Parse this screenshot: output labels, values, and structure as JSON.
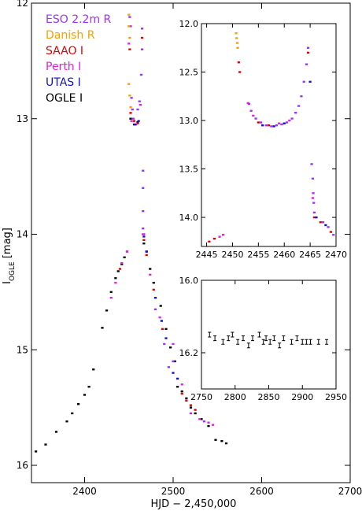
{
  "chart_data": [
    {
      "type": "scatter",
      "xlabel": "HJD − 2,450,000",
      "ylabel": "I",
      "ylabel_sub": "OGLE",
      "ylabel_unit": " [mag]",
      "xlim": [
        2340,
        2700
      ],
      "ylim": [
        16.15,
        12.0
      ],
      "xticks": [
        2400,
        2500,
        2600,
        2700
      ],
      "yticks": [
        12,
        13,
        14,
        15,
        16
      ],
      "legend": {
        "placement": "top-left",
        "entries": [
          {
            "name": "ESO 2.2m R",
            "color": "#9b30ff"
          },
          {
            "name": "Danish R",
            "color": "#f5a000"
          },
          {
            "name": "SAAO I",
            "color": "#e00000"
          },
          {
            "name": "Perth I",
            "color": "#e020e0"
          },
          {
            "name": "UTAS I",
            "color": "#1010d0"
          },
          {
            "name": "OGLE I",
            "color": "#000000"
          }
        ]
      },
      "series": [
        {
          "name": "OGLE I",
          "color": "#000000",
          "points": [
            [
              2345,
              15.88
            ],
            [
              2356,
              15.82
            ],
            [
              2368,
              15.71
            ],
            [
              2380,
              15.62
            ],
            [
              2386,
              15.55
            ],
            [
              2393,
              15.47
            ],
            [
              2400,
              15.39
            ],
            [
              2405,
              15.32
            ],
            [
              2410,
              15.17
            ],
            [
              2420,
              14.81
            ],
            [
              2425,
              14.66
            ],
            [
              2430,
              14.5
            ],
            [
              2435,
              14.38
            ],
            [
              2438,
              14.32
            ],
            [
              2442,
              14.26
            ],
            [
              2445,
              14.2
            ],
            [
              2448,
              14.15
            ],
            [
              2452,
              13.0
            ],
            [
              2456,
              13.05
            ],
            [
              2460,
              13.03
            ],
            [
              2467,
              14.08
            ],
            [
              2470,
              14.15
            ],
            [
              2474,
              14.3
            ],
            [
              2478,
              14.42
            ],
            [
              2486,
              14.62
            ],
            [
              2492,
              14.82
            ],
            [
              2497,
              14.98
            ],
            [
              2502,
              15.1
            ],
            [
              2505,
              15.32
            ],
            [
              2510,
              15.36
            ],
            [
              2515,
              15.42
            ],
            [
              2520,
              15.5
            ],
            [
              2525,
              15.55
            ],
            [
              2532,
              15.6
            ],
            [
              2540,
              15.66
            ],
            [
              2548,
              15.78
            ],
            [
              2555,
              15.79
            ],
            [
              2560,
              15.81
            ]
          ]
        },
        {
          "name": "ESO 2.2m R",
          "color": "#9b30ff",
          "points": [
            [
              2451,
              12.12
            ],
            [
              2452,
              12.2
            ],
            [
              2453,
              12.82
            ],
            [
              2454,
              12.92
            ],
            [
              2455,
              13.0
            ],
            [
              2460,
              12.92
            ],
            [
              2462,
              12.85
            ],
            [
              2464,
              12.62
            ],
            [
              2465,
              12.22
            ],
            [
              2465,
              12.4
            ],
            [
              2466,
              13.45
            ],
            [
              2466,
              13.6
            ],
            [
              2466,
              13.8
            ],
            [
              2466,
              13.95
            ],
            [
              2467,
              14.0
            ],
            [
              2470,
              14.15
            ],
            [
              2480,
              14.65
            ],
            [
              2490,
              14.95
            ],
            [
              2495,
              15.15
            ],
            [
              2500,
              15.1
            ],
            [
              2520,
              15.55
            ],
            [
              2535,
              15.62
            ]
          ]
        },
        {
          "name": "Danish R",
          "color": "#f5a000",
          "points": [
            [
              2450,
              12.1
            ],
            [
              2450,
              12.2
            ],
            [
              2451,
              12.3
            ],
            [
              2450,
              12.7
            ],
            [
              2451,
              12.8
            ],
            [
              2452,
              12.9
            ]
          ]
        },
        {
          "name": "SAAO I",
          "color": "#e00000",
          "points": [
            [
              2440,
              14.3
            ],
            [
              2451,
              12.4
            ],
            [
              2452,
              12.95
            ],
            [
              2456,
              13.02
            ],
            [
              2460,
              13.04
            ],
            [
              2465,
              12.3
            ],
            [
              2467,
              14.05
            ],
            [
              2470,
              14.18
            ],
            [
              2478,
              14.48
            ],
            [
              2488,
              14.82
            ],
            [
              2510,
              15.38
            ],
            [
              2515,
              15.44
            ],
            [
              2520,
              15.48
            ],
            [
              2525,
              15.52
            ]
          ]
        },
        {
          "name": "Perth I",
          "color": "#e020e0",
          "points": [
            [
              2430,
              14.55
            ],
            [
              2435,
              14.42
            ],
            [
              2442,
              14.25
            ],
            [
              2448,
              14.15
            ],
            [
              2450,
              12.35
            ],
            [
              2453,
              13.02
            ],
            [
              2458,
              13.05
            ],
            [
              2463,
              12.88
            ],
            [
              2466,
              14.0
            ],
            [
              2474,
              14.35
            ],
            [
              2485,
              14.72
            ],
            [
              2500,
              14.95
            ],
            [
              2510,
              15.3
            ],
            [
              2530,
              15.6
            ],
            [
              2540,
              15.63
            ],
            [
              2545,
              15.65
            ]
          ]
        },
        {
          "name": "UTAS I",
          "color": "#1010d0",
          "points": [
            [
              2457,
              13.05
            ],
            [
              2461,
              13.02
            ],
            [
              2467,
              14.02
            ],
            [
              2470,
              14.15
            ],
            [
              2480,
              14.55
            ],
            [
              2487,
              14.75
            ],
            [
              2492,
              14.9
            ],
            [
              2500,
              15.2
            ],
            [
              2505,
              15.25
            ]
          ]
        }
      ]
    },
    {
      "type": "scatter",
      "placement": "top-right inset",
      "xlim": [
        2444,
        2470
      ],
      "ylim": [
        14.3,
        12.0
      ],
      "xticks": [
        2445,
        2450,
        2455,
        2460,
        2465,
        2470
      ],
      "yticks": [
        12.0,
        12.5,
        13.0,
        13.5,
        14.0
      ],
      "series": [
        {
          "name": "Danish R",
          "color": "#f5a000",
          "points": [
            [
              2450.7,
              12.1
            ],
            [
              2450.8,
              12.15
            ],
            [
              2450.9,
              12.2
            ],
            [
              2451.0,
              12.25
            ]
          ]
        },
        {
          "name": "SAAO I",
          "color": "#e00000",
          "points": [
            [
              2445.5,
              14.25
            ],
            [
              2446.5,
              14.22
            ],
            [
              2451.2,
              12.4
            ],
            [
              2451.4,
              12.5
            ],
            [
              2455,
              13.02
            ],
            [
              2457,
              13.05
            ],
            [
              2464.6,
              12.3
            ],
            [
              2465.8,
              14.0
            ],
            [
              2467,
              14.05
            ],
            [
              2469,
              14.15
            ]
          ]
        },
        {
          "name": "Perth I",
          "color": "#e020e0",
          "points": [
            [
              2447.5,
              14.2
            ],
            [
              2448.2,
              14.18
            ],
            [
              2453,
              12.82
            ],
            [
              2454,
              12.95
            ],
            [
              2459,
              13.03
            ],
            [
              2461,
              13.0
            ],
            [
              2465.5,
              13.8
            ]
          ]
        },
        {
          "name": "ESO 2.2m R",
          "color": "#9b30ff",
          "points": [
            [
              2453.2,
              12.83
            ],
            [
              2453.6,
              12.9
            ],
            [
              2454.5,
              12.98
            ],
            [
              2455.5,
              13.02
            ],
            [
              2456.5,
              13.05
            ],
            [
              2457.5,
              13.06
            ],
            [
              2458.5,
              13.05
            ],
            [
              2459.5,
              13.04
            ],
            [
              2460.5,
              13.02
            ],
            [
              2461.5,
              12.98
            ],
            [
              2462.2,
              12.92
            ],
            [
              2462.8,
              12.85
            ],
            [
              2463.3,
              12.75
            ],
            [
              2463.8,
              12.6
            ],
            [
              2464.3,
              12.42
            ],
            [
              2464.6,
              12.25
            ],
            [
              2465.3,
              13.45
            ],
            [
              2465.5,
              13.6
            ],
            [
              2465.6,
              13.75
            ],
            [
              2465.7,
              13.85
            ],
            [
              2465.8,
              13.95
            ],
            [
              2467.5,
              14.05
            ],
            [
              2468.5,
              14.1
            ],
            [
              2469.5,
              14.18
            ]
          ]
        },
        {
          "name": "UTAS I",
          "color": "#1010d0",
          "points": [
            [
              2455.8,
              13.05
            ],
            [
              2458,
              13.06
            ],
            [
              2460,
              13.03
            ],
            [
              2465,
              12.6
            ],
            [
              2466.2,
              14.0
            ],
            [
              2468,
              14.08
            ]
          ]
        }
      ]
    },
    {
      "type": "scatter",
      "placement": "middle-right inset",
      "xlim": [
        2750,
        2950
      ],
      "ylim": [
        16.3,
        16.0
      ],
      "xticks": [
        2750,
        2800,
        2850,
        2900,
        2950
      ],
      "yticks": [
        16.0,
        16.2
      ],
      "series": [
        {
          "name": "OGLE I",
          "color": "#000000",
          "points": [
            [
              2762,
              16.15
            ],
            [
              2770,
              16.16
            ],
            [
              2782,
              16.17
            ],
            [
              2790,
              16.16
            ],
            [
              2796,
              16.15
            ],
            [
              2804,
              16.17
            ],
            [
              2812,
              16.16
            ],
            [
              2820,
              16.18
            ],
            [
              2826,
              16.16
            ],
            [
              2836,
              16.15
            ],
            [
              2842,
              16.17
            ],
            [
              2846,
              16.16
            ],
            [
              2852,
              16.17
            ],
            [
              2858,
              16.16
            ],
            [
              2866,
              16.18
            ],
            [
              2872,
              16.16
            ],
            [
              2884,
              16.17
            ],
            [
              2892,
              16.16
            ],
            [
              2900,
              16.17
            ],
            [
              2906,
              16.17
            ],
            [
              2912,
              16.17
            ],
            [
              2924,
              16.17
            ],
            [
              2936,
              16.17
            ]
          ]
        }
      ]
    }
  ]
}
